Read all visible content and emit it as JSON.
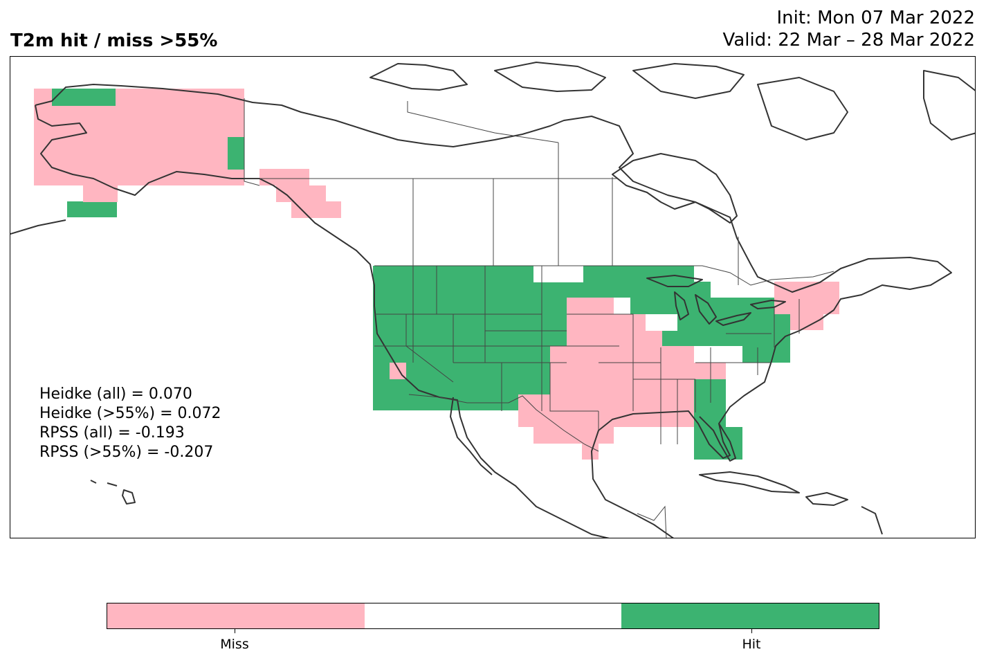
{
  "title": "T2m hit / miss  >55%",
  "init_line": "Init: Mon 07 Mar 2022",
  "valid_line": "Valid: 22 Mar – 28 Mar 2022",
  "stats": [
    "Heidke (all) = 0.070",
    "Heidke (>55%) = 0.072",
    "RPSS (all) = -0.193",
    "RPSS (>55%) = -0.207"
  ],
  "colors": {
    "miss": "#ffb6c1",
    "neutral": "#ffffff",
    "hit": "#3cb371",
    "coast": "#333333",
    "border": "#444444"
  },
  "colorbar": {
    "labels": [
      "Miss",
      "Hit"
    ]
  }
}
